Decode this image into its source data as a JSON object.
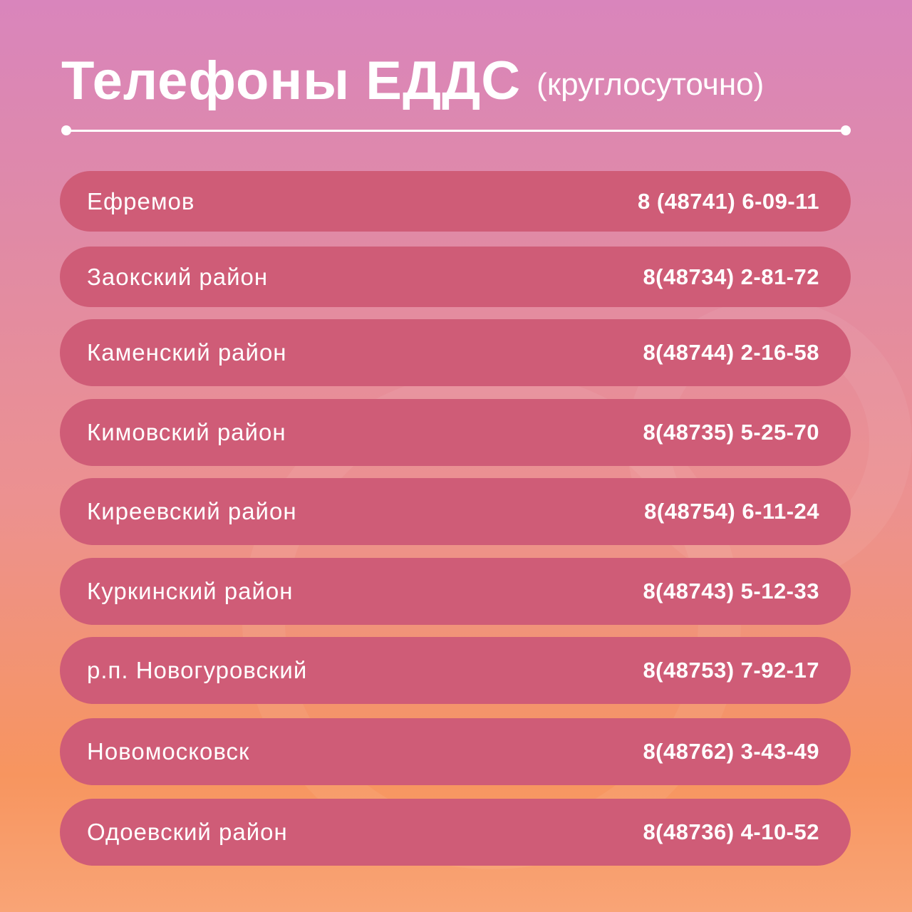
{
  "header": {
    "title": "Телефоны ЕДДС",
    "subtitle": "(круглосуточно)"
  },
  "colors": {
    "row_background": "#cf5c77",
    "gradient_top": "#d985bc",
    "gradient_bottom": "#f9a476",
    "text": "#ffffff"
  },
  "contacts": [
    {
      "name": "Ефремов",
      "phone": "8 (48741) 6-09-11"
    },
    {
      "name": "Заокский район",
      "phone": "8(48734) 2-81-72"
    },
    {
      "name": "Каменский район",
      "phone": "8(48744) 2-16-58"
    },
    {
      "name": "Кимовский район",
      "phone": "8(48735) 5-25-70"
    },
    {
      "name": "Киреевский район",
      "phone": "8(48754) 6-11-24"
    },
    {
      "name": "Куркинский район",
      "phone": "8(48743) 5-12-33"
    },
    {
      "name": "р.п. Новогуровский",
      "phone": "8(48753) 7-92-17"
    },
    {
      "name": "Новомосковск",
      "phone": "8(48762) 3-43-49"
    },
    {
      "name": "Одоевский район",
      "phone": "8(48736) 4-10-52"
    }
  ]
}
